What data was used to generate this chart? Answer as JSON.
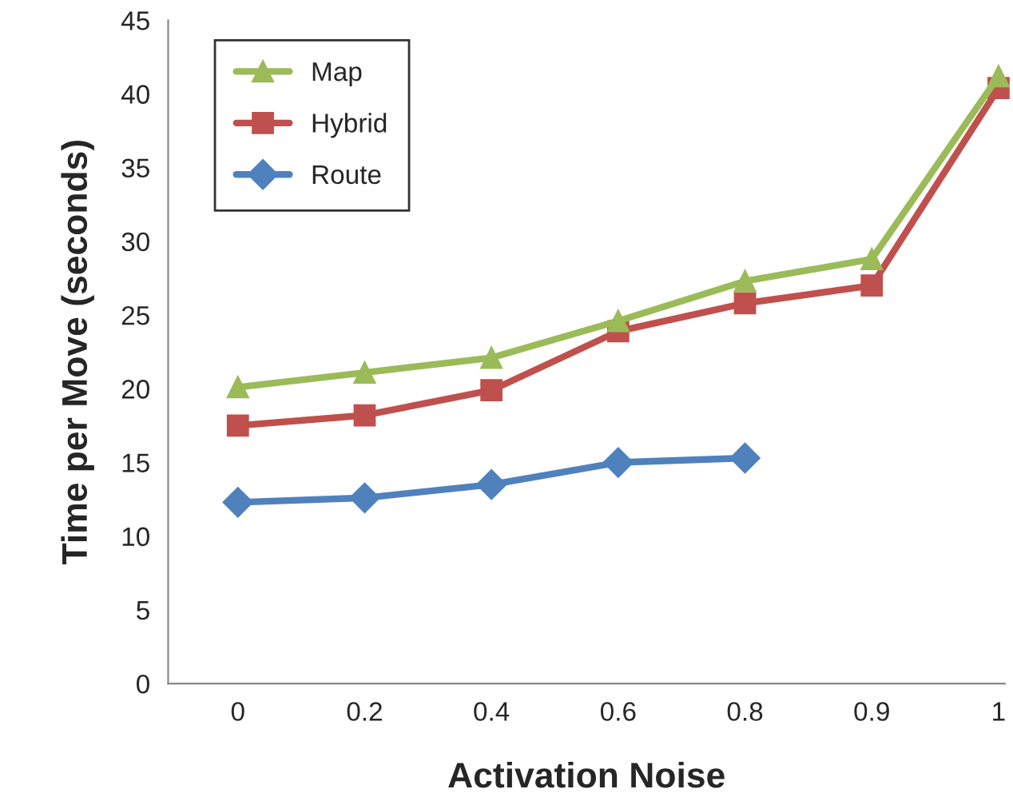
{
  "chart_data": {
    "type": "line",
    "xlabel": "Activation Noise",
    "ylabel": "Time per Move (seconds)",
    "categories": [
      "0",
      "0.2",
      "0.4",
      "0.6",
      "0.8",
      "0.9",
      "1"
    ],
    "ylim": [
      0,
      45
    ],
    "yticks": [
      0,
      5,
      10,
      15,
      20,
      25,
      30,
      35,
      40,
      45
    ],
    "grid": false,
    "legend": "top left",
    "series": [
      {
        "name": "Map",
        "color": "#9bbb59",
        "marker": "triangle",
        "values": [
          20.1,
          21.1,
          22.1,
          24.6,
          27.3,
          28.8,
          41.2
        ]
      },
      {
        "name": "Hybrid",
        "color": "#c0504d",
        "marker": "square",
        "values": [
          17.5,
          18.2,
          19.9,
          23.9,
          25.8,
          27.0,
          40.4
        ]
      },
      {
        "name": "Route",
        "color": "#4f81bd",
        "marker": "diamond",
        "values": [
          12.3,
          12.6,
          13.5,
          15.0,
          15.3,
          null,
          null
        ]
      }
    ]
  }
}
